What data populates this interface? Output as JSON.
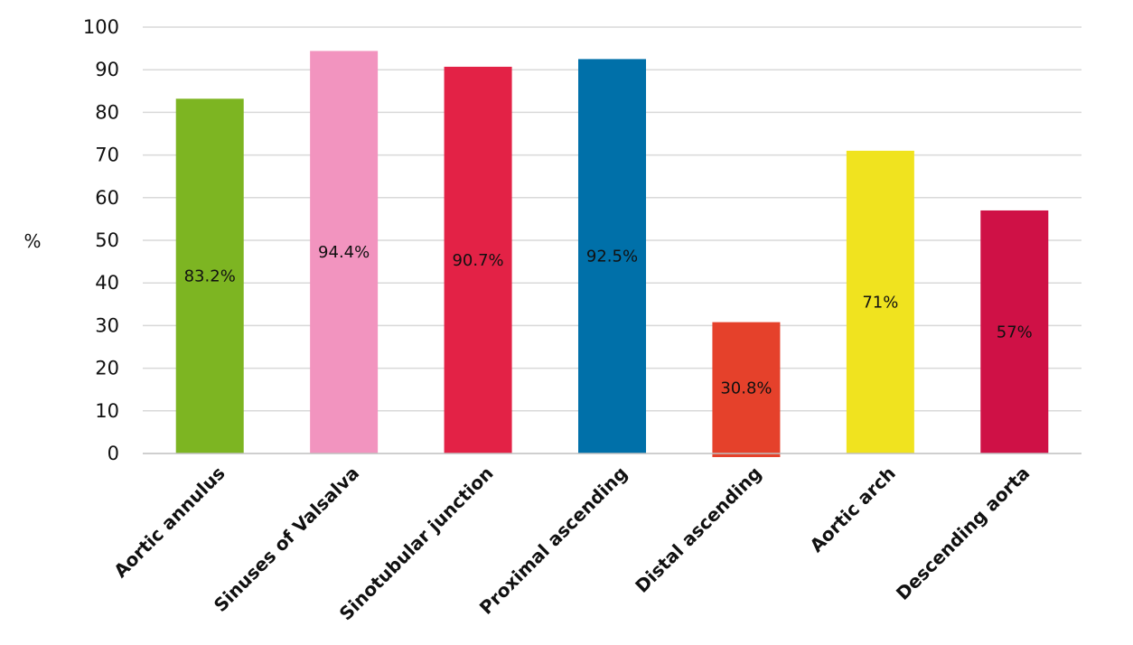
{
  "chart_data": {
    "type": "bar",
    "title": "",
    "xlabel": "",
    "ylabel": "%",
    "ylim": [
      0,
      100
    ],
    "yticks": [
      0,
      10,
      20,
      30,
      40,
      50,
      60,
      70,
      80,
      90,
      100
    ],
    "grid": true,
    "categories": [
      "Aortic annulus",
      "Sinuses of Valsalva",
      "Sinotubular junction",
      "Proximal ascending",
      "Distal ascending",
      "Aortic arch",
      "Descending aorta"
    ],
    "values": [
      83.2,
      94.4,
      90.7,
      92.5,
      30.8,
      71,
      57
    ],
    "data_labels": [
      "83.2%",
      "94.4%",
      "90.7%",
      "92.5%",
      "30.8%",
      "71%",
      "57%"
    ],
    "colors": [
      "#7db522",
      "#f294bf",
      "#e32246",
      "#0070a9",
      "#e5412b",
      "#f0e31f",
      "#cf1146"
    ]
  }
}
